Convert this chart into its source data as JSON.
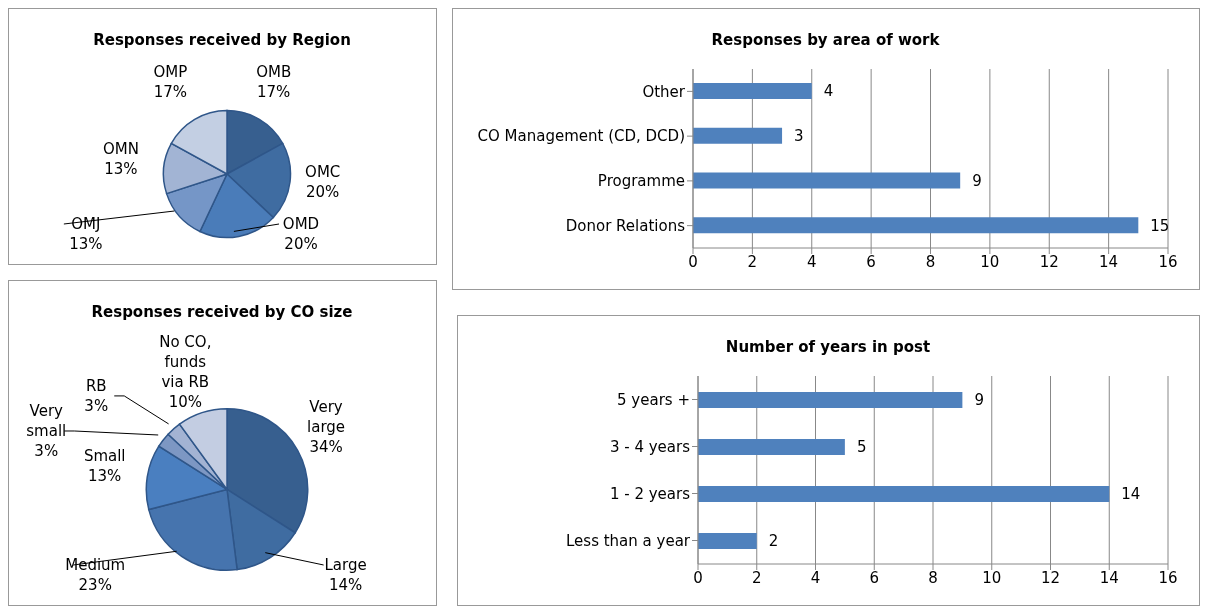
{
  "chart_data": [
    {
      "type": "pie",
      "title": "Responses received by Region",
      "categories": [
        "OMB",
        "OMC",
        "OMD",
        "OMJ",
        "OMN",
        "OMP"
      ],
      "values": [
        17,
        20,
        20,
        13,
        13,
        17
      ],
      "value_labels": [
        "17%",
        "20%",
        "20%",
        "13%",
        "13%",
        "17%"
      ],
      "colors": [
        "#375f8f",
        "#3f6ca1",
        "#4a7cb9",
        "#7596c7",
        "#a2b4d4",
        "#c3cfe3"
      ]
    },
    {
      "type": "bar",
      "orientation": "horizontal",
      "title": "Responses by area of work",
      "categories": [
        "Other",
        "CO Management (CD, DCD)",
        "Programme",
        "Donor Relations"
      ],
      "values": [
        4,
        3,
        9,
        15
      ],
      "color": "#4f81bd",
      "xlim": [
        0,
        16
      ],
      "xticks": [
        0,
        2,
        4,
        6,
        8,
        10,
        12,
        14,
        16
      ],
      "grid": "x",
      "data_labels": true
    },
    {
      "type": "pie",
      "title": "Responses received by CO size",
      "categories": [
        "Very large",
        "Large",
        "Medium",
        "Small",
        "Very small",
        "RB",
        "No CO, funds via RB"
      ],
      "values": [
        34,
        14,
        23,
        13,
        3,
        3,
        10
      ],
      "value_labels": [
        "34%",
        "14%",
        "23%",
        "13%",
        "3%",
        "3%",
        "10%"
      ],
      "colors": [
        "#375f8f",
        "#3f6ca1",
        "#4674ae",
        "#4a7fc0",
        "#7d97c3",
        "#a3b3d3",
        "#c3cde2"
      ]
    },
    {
      "type": "bar",
      "orientation": "horizontal",
      "title": "Number of years in post",
      "categories": [
        "5 years +",
        "3 - 4 years",
        "1 - 2 years",
        "Less than a year"
      ],
      "values": [
        9,
        5,
        14,
        2
      ],
      "color": "#4f81bd",
      "xlim": [
        0,
        16
      ],
      "xticks": [
        0,
        2,
        4,
        6,
        8,
        10,
        12,
        14,
        16
      ],
      "grid": "x",
      "data_labels": true
    }
  ]
}
